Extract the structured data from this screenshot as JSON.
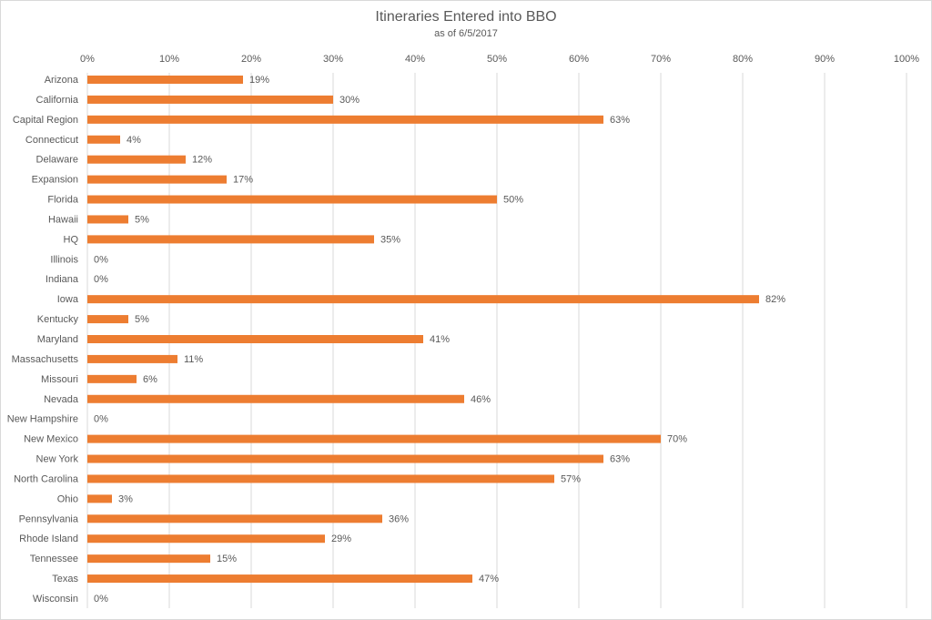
{
  "chart_data": {
    "type": "bar",
    "orientation": "horizontal",
    "title": "Itineraries Entered into BBO",
    "subtitle": "as of 6/5/2017",
    "xlabel": "",
    "ylabel": "",
    "xlim": [
      0,
      100
    ],
    "x_ticks": [
      "0%",
      "10%",
      "20%",
      "30%",
      "40%",
      "50%",
      "60%",
      "70%",
      "80%",
      "90%",
      "100%"
    ],
    "grid": true,
    "bar_color": "#ED7D31",
    "categories": [
      "Arizona",
      "California",
      "Capital Region",
      "Connecticut",
      "Delaware",
      "Expansion",
      "Florida",
      "Hawaii",
      "HQ",
      "Illinois",
      "Indiana",
      "Iowa",
      "Kentucky",
      "Maryland",
      "Massachusetts",
      "Missouri",
      "Nevada",
      "New Hampshire",
      "New Mexico",
      "New York",
      "North Carolina",
      "Ohio",
      "Pennsylvania",
      "Rhode Island",
      "Tennessee",
      "Texas",
      "Wisconsin"
    ],
    "values": [
      19,
      30,
      63,
      4,
      12,
      17,
      50,
      5,
      35,
      0,
      0,
      82,
      5,
      41,
      11,
      6,
      46,
      0,
      70,
      63,
      57,
      3,
      36,
      29,
      15,
      47,
      0
    ],
    "data_labels": [
      "19%",
      "30%",
      "63%",
      "4%",
      "12%",
      "17%",
      "50%",
      "5%",
      "35%",
      "0%",
      "0%",
      "82%",
      "5%",
      "41%",
      "11%",
      "6%",
      "46%",
      "0%",
      "70%",
      "63%",
      "57%",
      "3%",
      "36%",
      "29%",
      "15%",
      "47%",
      "0%"
    ]
  }
}
